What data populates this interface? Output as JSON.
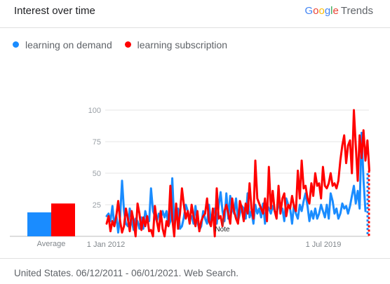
{
  "header": {
    "title": "Interest over time"
  },
  "brand": {
    "letters": [
      "G",
      "o",
      "o",
      "g",
      "l",
      "e"
    ],
    "letter_colors": [
      "#4285f4",
      "#ea4335",
      "#fbbc05",
      "#4285f4",
      "#34a853",
      "#ea4335"
    ],
    "suffix": "Trends"
  },
  "footer": {
    "text": "United States. 06/12/2011 - 06/01/2021. Web Search."
  },
  "chart_data": {
    "type": "line",
    "title": "",
    "xlabel": "",
    "ylabel": "",
    "ylim": [
      0,
      100
    ],
    "yticks": [
      25,
      50,
      75,
      100
    ],
    "xtick_labels": [
      "1 Jan 2012",
      "1 Jul 2019"
    ],
    "annotation": "Note",
    "grid": true,
    "legend_placement": "top-left",
    "averages_label": "Average",
    "series": [
      {
        "name": "learning on demand",
        "color": "#1a8cff",
        "average": 19,
        "values": [
          16,
          18,
          12,
          24,
          8,
          17,
          3,
          16,
          44,
          20,
          10,
          8,
          22,
          12,
          5,
          14,
          12,
          6,
          15,
          6,
          20,
          14,
          12,
          38,
          20,
          16,
          12,
          18,
          14,
          20,
          15,
          20,
          8,
          12,
          46,
          10,
          16,
          22,
          6,
          8,
          15,
          25,
          20,
          14,
          16,
          10,
          24,
          12,
          5,
          8,
          20,
          14,
          10,
          25,
          12,
          18,
          22,
          10,
          24,
          35,
          20,
          12,
          34,
          14,
          32,
          22,
          18,
          30,
          12,
          18,
          24,
          22,
          14,
          34,
          15,
          20,
          10,
          25,
          18,
          22,
          15,
          26,
          10,
          25,
          22,
          18,
          24,
          20,
          16,
          28,
          20,
          22,
          12,
          30,
          25,
          22,
          10,
          25,
          18,
          14,
          25,
          20,
          28,
          34,
          24,
          12,
          20,
          14,
          22,
          14,
          18,
          25,
          20,
          15,
          25,
          14,
          34,
          28,
          18,
          22,
          14,
          18,
          26,
          22,
          24,
          18,
          24,
          32,
          40,
          26,
          36,
          22,
          82,
          45,
          20
        ]
      },
      {
        "name": "learning subscription",
        "color": "#ff0000",
        "average": 26,
        "values": [
          10,
          16,
          4,
          12,
          8,
          16,
          28,
          12,
          3,
          8,
          22,
          14,
          4,
          20,
          12,
          0,
          26,
          18,
          5,
          15,
          8,
          16,
          4,
          5,
          0,
          24,
          12,
          4,
          20,
          6,
          0,
          12,
          8,
          40,
          14,
          0,
          26,
          6,
          18,
          38,
          25,
          14,
          20,
          10,
          25,
          16,
          8,
          20,
          4,
          12,
          16,
          18,
          30,
          12,
          8,
          22,
          0,
          38,
          14,
          16,
          8,
          20,
          25,
          18,
          10,
          30,
          20,
          14,
          10,
          28,
          22,
          12,
          26,
          18,
          42,
          22,
          14,
          60,
          30,
          26,
          22,
          18,
          30,
          12,
          55,
          22,
          36,
          20,
          14,
          40,
          18,
          30,
          34,
          16,
          25,
          22,
          32,
          24,
          20,
          52,
          30,
          60,
          38,
          40,
          30,
          26,
          42,
          32,
          50,
          40,
          42,
          30,
          55,
          40,
          38,
          42,
          50,
          40,
          42,
          38,
          44,
          60,
          72,
          80,
          58,
          72,
          76,
          50,
          100,
          72,
          44,
          80,
          62,
          84,
          60,
          76,
          52
        ]
      }
    ]
  }
}
